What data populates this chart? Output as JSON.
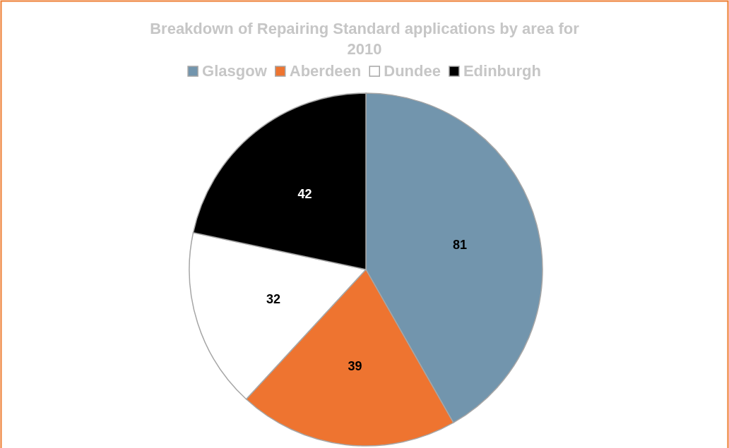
{
  "chart_data": {
    "type": "pie",
    "title": "Breakdown of Repairing Standard applications by area for 2010",
    "categories": [
      "Glasgow",
      "Aberdeen",
      "Dundee",
      "Edinburgh"
    ],
    "values": [
      81,
      39,
      32,
      42
    ],
    "colors": [
      "#7295ad",
      "#ee7430",
      "#ffffff",
      "#000000"
    ],
    "data_labels": true,
    "legend": "top"
  }
}
